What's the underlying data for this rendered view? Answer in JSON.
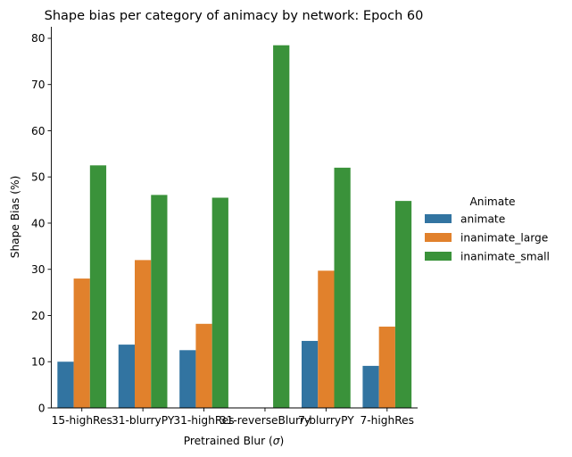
{
  "chart_data": {
    "type": "bar",
    "title": "Shape bias per category of animacy by network: Epoch 60",
    "xlabel": "Pretrained Blur (",
    "xlabel_symbol": "σ",
    "xlabel_suffix": ")",
    "ylabel": "Shape Bias (%)",
    "ylim": [
      0,
      82.5
    ],
    "yticks": [
      0,
      10,
      20,
      30,
      40,
      50,
      60,
      70,
      80
    ],
    "categories": [
      "15-highRes",
      "31-blurryPY",
      "31-highRes",
      "31-reverseBlurry",
      "7-blurryPY",
      "7-highRes"
    ],
    "legend_title": "Animate",
    "legend_position": "right",
    "grid": false,
    "series": [
      {
        "name": "animate",
        "color": "#3274a1",
        "values": [
          10.0,
          13.7,
          12.5,
          0,
          14.5,
          9.1
        ]
      },
      {
        "name": "inanimate_large",
        "color": "#e1812c",
        "values": [
          28.0,
          32.0,
          18.2,
          0,
          29.7,
          17.6
        ]
      },
      {
        "name": "inanimate_small",
        "color": "#3a923a",
        "values": [
          52.5,
          46.1,
          45.5,
          78.5,
          52.0,
          44.8
        ]
      }
    ]
  }
}
